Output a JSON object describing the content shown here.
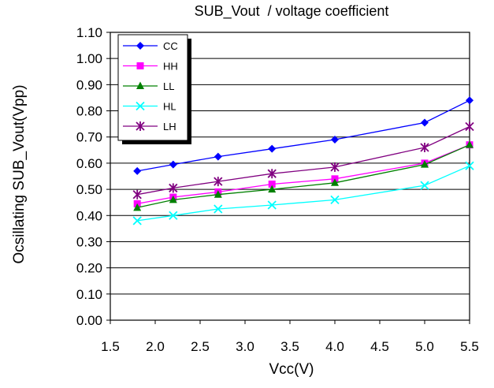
{
  "chart_data": {
    "type": "line",
    "title": "SUB_Vout  / voltage coefficient",
    "xlabel": "Vcc(V)",
    "ylabel": "Ocsillating SUB_Vout(Vpp)",
    "xlim": [
      1.5,
      5.5
    ],
    "ylim": [
      0.0,
      1.1
    ],
    "xticks": [
      "1.5",
      "2.0",
      "2.5",
      "3.0",
      "3.5",
      "4.0",
      "4.5",
      "5.0",
      "5.5"
    ],
    "yticks": [
      "0.00",
      "0.10",
      "0.20",
      "0.30",
      "0.40",
      "0.50",
      "0.60",
      "0.70",
      "0.80",
      "0.90",
      "1.00",
      "1.10"
    ],
    "x": [
      1.8,
      2.2,
      2.7,
      3.3,
      4.0,
      5.0,
      5.5
    ],
    "grid": true,
    "legend_position": "top-left",
    "series": [
      {
        "name": "CC",
        "color": "#0000ff",
        "marker": "diamond",
        "values": [
          0.57,
          0.595,
          0.625,
          0.655,
          0.69,
          0.755,
          0.84
        ]
      },
      {
        "name": "HH",
        "color": "#ff00ff",
        "marker": "square",
        "values": [
          0.445,
          0.47,
          0.49,
          0.52,
          0.54,
          0.6,
          0.67
        ]
      },
      {
        "name": "LL",
        "color": "#008000",
        "marker": "triangle",
        "values": [
          0.43,
          0.46,
          0.48,
          0.5,
          0.525,
          0.595,
          0.67
        ]
      },
      {
        "name": "HL",
        "color": "#00ffff",
        "marker": "x",
        "values": [
          0.38,
          0.4,
          0.425,
          0.44,
          0.46,
          0.515,
          0.59
        ]
      },
      {
        "name": "LH",
        "color": "#800080",
        "marker": "star",
        "values": [
          0.48,
          0.505,
          0.53,
          0.56,
          0.585,
          0.66,
          0.74
        ]
      }
    ]
  }
}
